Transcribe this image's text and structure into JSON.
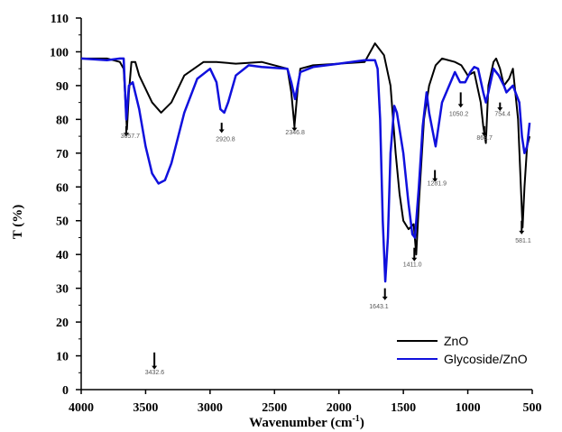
{
  "chart_data": {
    "type": "line",
    "xlabel": "Wavenumber (cm",
    "xlabel_sup": "-1",
    "xlabel_end": ")",
    "ylabel": "T (%)",
    "xlim": [
      4000,
      500
    ],
    "ylim": [
      0,
      110
    ],
    "x_ticks": [
      4000,
      3500,
      3000,
      2500,
      2000,
      1500,
      1000,
      500
    ],
    "x_tick_labels": [
      "4000",
      "3500",
      "3000",
      "2500",
      "2000",
      "1500",
      "1000",
      "500"
    ],
    "y_ticks": [
      0,
      10,
      20,
      30,
      40,
      50,
      60,
      70,
      80,
      90,
      100,
      110
    ],
    "y_tick_labels": [
      "0",
      "10",
      "20",
      "30",
      "40",
      "50",
      "60",
      "70",
      "80",
      "90",
      "100",
      "110"
    ],
    "grid": false,
    "legend_position": "bottom-right",
    "series": [
      {
        "name": "ZnO",
        "color": "#000000",
        "x": [
          4000,
          3800,
          3700,
          3670,
          3645,
          3630,
          3610,
          3580,
          3550,
          3450,
          3380,
          3300,
          3200,
          3050,
          2950,
          2800,
          2600,
          2400,
          2370,
          2345,
          2320,
          2300,
          2200,
          2000,
          1800,
          1720,
          1650,
          1600,
          1560,
          1530,
          1500,
          1460,
          1420,
          1400,
          1380,
          1340,
          1300,
          1250,
          1200,
          1100,
          1050,
          1000,
          950,
          900,
          880,
          860,
          840,
          800,
          780,
          750,
          720,
          680,
          650,
          610,
          590,
          575,
          560,
          540,
          520
        ],
        "y": [
          98,
          98,
          97,
          95,
          77,
          88,
          97,
          97,
          93,
          85,
          82,
          85,
          93,
          97,
          97,
          96.5,
          97,
          95,
          88,
          78,
          89,
          95,
          96,
          96.5,
          97,
          102.5,
          99,
          90,
          70,
          58,
          50,
          47.5,
          49,
          40,
          55,
          80,
          90,
          96,
          98,
          97,
          96,
          93,
          94,
          85,
          78,
          73,
          90,
          97,
          98,
          95,
          90,
          92,
          95,
          80,
          62,
          48,
          60,
          72,
          75
        ]
      },
      {
        "name": "Glycoside/ZnO",
        "color": "#1010dd",
        "x": [
          4000,
          3800,
          3700,
          3670,
          3650,
          3630,
          3600,
          3550,
          3500,
          3450,
          3400,
          3350,
          3300,
          3200,
          3100,
          3000,
          2950,
          2920,
          2890,
          2860,
          2800,
          2700,
          2600,
          2400,
          2370,
          2340,
          2300,
          2200,
          2000,
          1800,
          1720,
          1700,
          1680,
          1660,
          1640,
          1620,
          1600,
          1570,
          1550,
          1500,
          1460,
          1430,
          1410,
          1380,
          1350,
          1320,
          1300,
          1250,
          1200,
          1100,
          1060,
          1020,
          980,
          950,
          920,
          880,
          860,
          840,
          800,
          760,
          720,
          700,
          650,
          600,
          580,
          560,
          540,
          520
        ],
        "y": [
          98,
          97.5,
          98,
          98,
          80,
          90,
          91,
          83,
          72,
          64,
          61,
          62,
          67,
          82,
          92,
          95,
          91,
          83,
          82,
          85,
          93,
          96,
          95.5,
          95,
          91,
          86,
          94,
          95.5,
          96.5,
          97.5,
          97.5,
          95,
          80,
          50,
          32,
          45,
          70,
          84,
          82,
          70,
          55,
          46,
          45,
          60,
          78,
          88,
          82,
          72,
          85,
          94,
          91,
          91,
          94,
          95.5,
          95,
          88,
          85,
          88,
          95,
          93,
          90,
          88,
          90,
          85,
          75,
          70,
          72,
          79
        ]
      }
    ],
    "peak_annotations": [
      {
        "label": "3657.7",
        "x": 3620,
        "y": 74.5
      },
      {
        "label": "2920.8",
        "x": 2880,
        "y": 73.5
      },
      {
        "label": "2346.8",
        "x": 2340,
        "y": 75.5
      },
      {
        "label": "1643.1",
        "x": 1690,
        "y": 24
      },
      {
        "label": "1411.0",
        "x": 1430,
        "y": 36.5
      },
      {
        "label": "1281.9",
        "x": 1240,
        "y": 60.5
      },
      {
        "label": "1050.2",
        "x": 1070,
        "y": 81
      },
      {
        "label": "869.7",
        "x": 870,
        "y": 74
      },
      {
        "label": "754.4",
        "x": 730,
        "y": 81
      },
      {
        "label": "581.1",
        "x": 570,
        "y": 43.5
      },
      {
        "label": "3432.6",
        "x": 3430,
        "y": 4.5
      }
    ],
    "arrows": [
      {
        "x": 3650,
        "y_from": 78,
        "y_to": 75.5
      },
      {
        "x": 2910,
        "y_from": 79,
        "y_to": 76.5
      },
      {
        "x": 2345,
        "y_from": 80,
        "y_to": 77
      },
      {
        "x": 1643,
        "y_from": 30,
        "y_to": 27
      },
      {
        "x": 1415,
        "y_from": 42,
        "y_to": 38.5
      },
      {
        "x": 1255,
        "y_from": 65,
        "y_to": 62
      },
      {
        "x": 1055,
        "y_from": 88,
        "y_to": 84
      },
      {
        "x": 872,
        "y_from": 78,
        "y_to": 75.5
      },
      {
        "x": 750,
        "y_from": 85,
        "y_to": 83
      },
      {
        "x": 582,
        "y_from": 50,
        "y_to": 46.5
      },
      {
        "x": 3432,
        "y_from": 11,
        "y_to": 6.5
      }
    ]
  }
}
